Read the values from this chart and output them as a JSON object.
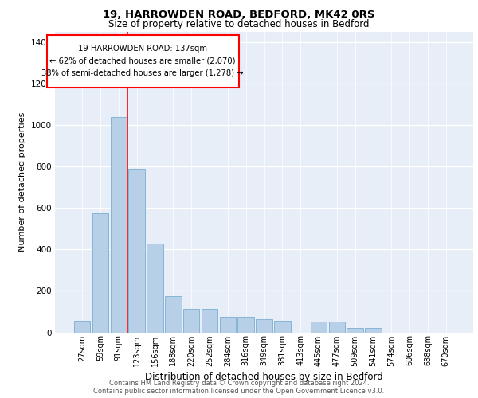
{
  "title1": "19, HARROWDEN ROAD, BEDFORD, MK42 0RS",
  "title2": "Size of property relative to detached houses in Bedford",
  "xlabel": "Distribution of detached houses by size in Bedford",
  "ylabel": "Number of detached properties",
  "categories": [
    "27sqm",
    "59sqm",
    "91sqm",
    "123sqm",
    "156sqm",
    "188sqm",
    "220sqm",
    "252sqm",
    "284sqm",
    "316sqm",
    "349sqm",
    "381sqm",
    "413sqm",
    "445sqm",
    "477sqm",
    "509sqm",
    "541sqm",
    "574sqm",
    "606sqm",
    "638sqm",
    "670sqm"
  ],
  "values": [
    55,
    575,
    1040,
    790,
    430,
    175,
    115,
    115,
    75,
    75,
    65,
    55,
    0,
    50,
    50,
    20,
    20,
    0,
    0,
    0,
    0
  ],
  "bar_color": "#b8cfe8",
  "bar_edge_color": "#7aadd4",
  "red_line_x": 3.0,
  "annotation_box_text": "19 HARROWDEN ROAD: 137sqm\n← 62% of detached houses are smaller (2,070)\n38% of semi-detached houses are larger (1,278) →",
  "ylim": [
    0,
    1450
  ],
  "yticks": [
    0,
    200,
    400,
    600,
    800,
    1000,
    1200,
    1400
  ],
  "bg_color": "#e8eef8",
  "footer1": "Contains HM Land Registry data © Crown copyright and database right 2024.",
  "footer2": "Contains public sector information licensed under the Open Government Licence v3.0."
}
